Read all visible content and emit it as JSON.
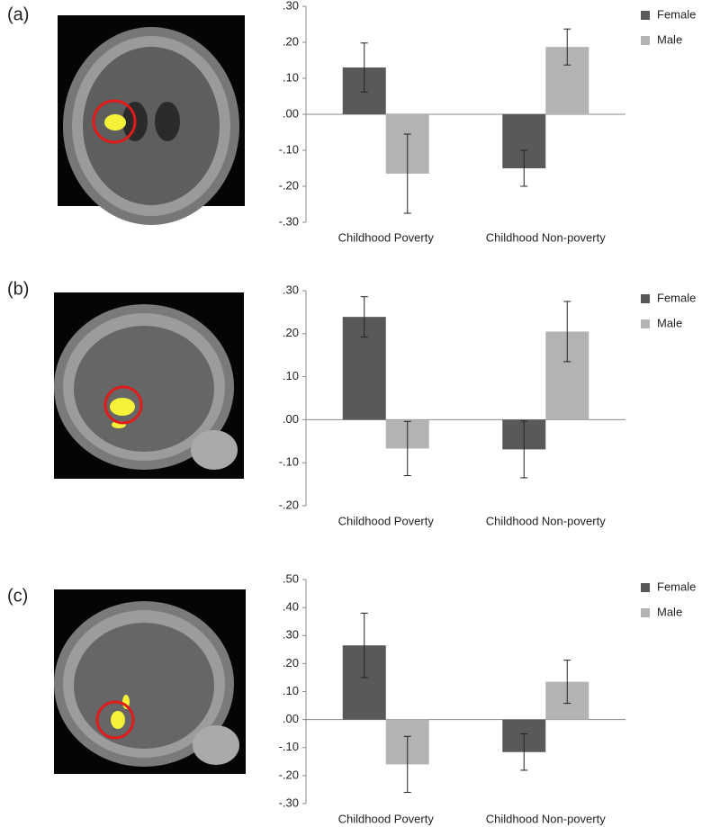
{
  "chart_data": [
    {
      "type": "bar",
      "panel_label": "(a)",
      "categories": [
        "Childhood Poverty",
        "Childhood Non-poverty"
      ],
      "series": [
        {
          "name": "Female",
          "color": "#595959",
          "values": [
            0.13,
            -0.15
          ],
          "errors": [
            0.068,
            0.05
          ]
        },
        {
          "name": "Male",
          "color": "#b3b3b3",
          "values": [
            -0.165,
            0.187
          ],
          "errors": [
            0.11,
            0.05
          ]
        }
      ],
      "ylim": [
        -0.3,
        0.3
      ],
      "yticks": [
        {
          "value": -0.3,
          "label": "-.30"
        },
        {
          "value": -0.2,
          "label": "-.20"
        },
        {
          "value": -0.1,
          "label": "-.10"
        },
        {
          "value": 0,
          "label": ".00"
        },
        {
          "value": 0.1,
          "label": ".10"
        },
        {
          "value": 0.2,
          "label": ".20"
        },
        {
          "value": 0.3,
          "label": ".30"
        }
      ],
      "legend": "right",
      "grid": false
    },
    {
      "type": "bar",
      "panel_label": "(b)",
      "categories": [
        "Childhood Poverty",
        "Childhood Non-poverty"
      ],
      "series": [
        {
          "name": "Female",
          "color": "#595959",
          "values": [
            0.239,
            -0.069
          ],
          "errors": [
            0.047,
            0.066
          ]
        },
        {
          "name": "Male",
          "color": "#b3b3b3",
          "values": [
            -0.067,
            0.205
          ],
          "errors": [
            0.063,
            0.07
          ]
        }
      ],
      "ylim": [
        -0.2,
        0.3
      ],
      "yticks": [
        {
          "value": -0.2,
          "label": "-.20"
        },
        {
          "value": -0.1,
          "label": "-.10"
        },
        {
          "value": 0,
          "label": ".00"
        },
        {
          "value": 0.1,
          "label": ".10"
        },
        {
          "value": 0.2,
          "label": ".20"
        },
        {
          "value": 0.3,
          "label": ".30"
        }
      ],
      "legend": "right",
      "grid": false
    },
    {
      "type": "bar",
      "panel_label": "(c)",
      "categories": [
        "Childhood Poverty",
        "Childhood Non-poverty"
      ],
      "series": [
        {
          "name": "Female",
          "color": "#595959",
          "values": [
            0.265,
            -0.116
          ],
          "errors": [
            0.115,
            0.065
          ]
        },
        {
          "name": "Male",
          "color": "#b3b3b3",
          "values": [
            -0.16,
            0.135
          ],
          "errors": [
            0.1,
            0.077
          ]
        }
      ],
      "ylim": [
        -0.3,
        0.5
      ],
      "yticks": [
        {
          "value": -0.3,
          "label": "-.30"
        },
        {
          "value": -0.2,
          "label": "-.20"
        },
        {
          "value": -0.1,
          "label": "-.10"
        },
        {
          "value": 0,
          "label": ".00"
        },
        {
          "value": 0.1,
          "label": ".10"
        },
        {
          "value": 0.2,
          "label": ".20"
        },
        {
          "value": 0.3,
          "label": ".30"
        },
        {
          "value": 0.4,
          "label": ".40"
        },
        {
          "value": 0.5,
          "label": ".50"
        }
      ],
      "legend": "right",
      "grid": false
    }
  ]
}
